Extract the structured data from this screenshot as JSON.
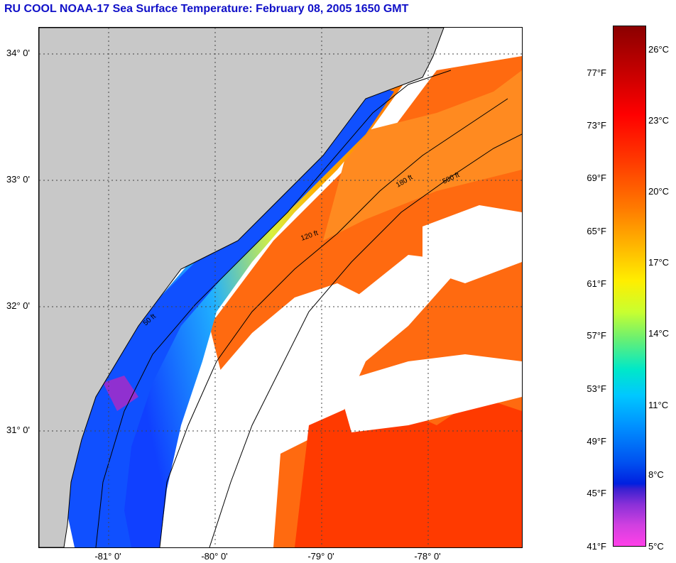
{
  "title": "RU COOL  NOAA-17  Sea Surface Temperature:  February 08, 2005 1650 GMT",
  "latitude_labels": [
    "34° 0'",
    "33° 0'",
    "32° 0'",
    "31° 0'"
  ],
  "longitude_labels": [
    "-81° 0'",
    "-80° 0'",
    "-79° 0'",
    "-78° 0'"
  ],
  "isobath_labels": [
    "50 ft",
    "120 ft",
    "500 ft",
    "180 ft"
  ],
  "colorbar": {
    "fahrenheit_labels": [
      "77°F",
      "73°F",
      "69°F",
      "65°F",
      "61°F",
      "57°F",
      "53°F",
      "49°F",
      "45°F",
      "41°F"
    ],
    "celsius_labels": [
      "26°C",
      "23°C",
      "20°C",
      "17°C",
      "14°C",
      "11°C",
      "8°C",
      "5°C"
    ],
    "min_f": 41,
    "max_f": 80
  },
  "colors": {
    "title": "#1010c8",
    "land": "#c8c8c8",
    "cloud": "#ffffff",
    "cold": "#1040ff",
    "warm": "#ff5a00"
  }
}
